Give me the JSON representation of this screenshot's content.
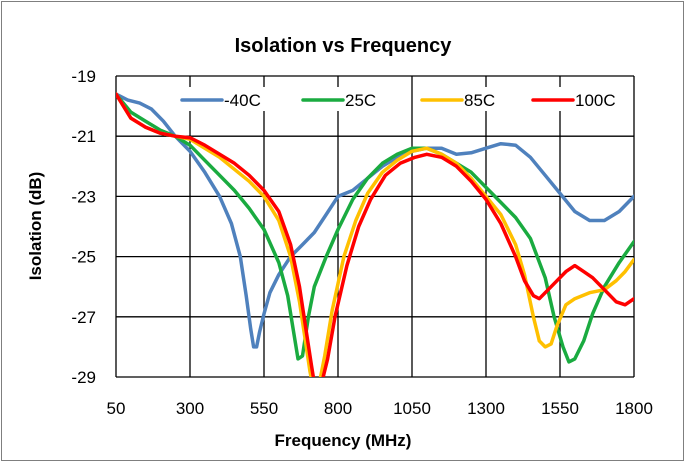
{
  "chart_data": {
    "type": "line",
    "title": "Isolation vs Frequency",
    "xlabel": "Frequency (MHz)",
    "ylabel": "Isolation (dB)",
    "xlim": [
      50,
      1800
    ],
    "ylim": [
      -29,
      -19
    ],
    "x_ticks": [
      50,
      300,
      550,
      800,
      1050,
      1300,
      1550,
      1800
    ],
    "x_tick_labels": [
      "50",
      "300",
      "550",
      "800",
      "1050",
      "1300",
      "1550",
      "1800"
    ],
    "y_ticks": [
      -19,
      -21,
      -23,
      -25,
      -27,
      -29
    ],
    "y_tick_labels": [
      "-19",
      "-21",
      "-23",
      "-25",
      "-27",
      "-29"
    ],
    "grid": true,
    "legend_position": "top",
    "series": [
      {
        "name": "-40C",
        "color": "#4f81bd",
        "points": [
          [
            50,
            -19.6
          ],
          [
            90,
            -19.8
          ],
          [
            130,
            -19.9
          ],
          [
            170,
            -20.1
          ],
          [
            210,
            -20.5
          ],
          [
            250,
            -21.0
          ],
          [
            300,
            -21.5
          ],
          [
            350,
            -22.2
          ],
          [
            400,
            -23.0
          ],
          [
            440,
            -23.9
          ],
          [
            470,
            -25.0
          ],
          [
            490,
            -26.3
          ],
          [
            505,
            -27.4
          ],
          [
            515,
            -28.0
          ],
          [
            525,
            -28.0
          ],
          [
            535,
            -27.5
          ],
          [
            550,
            -26.9
          ],
          [
            570,
            -26.2
          ],
          [
            600,
            -25.6
          ],
          [
            640,
            -25.0
          ],
          [
            680,
            -24.6
          ],
          [
            720,
            -24.2
          ],
          [
            760,
            -23.6
          ],
          [
            800,
            -23.0
          ],
          [
            850,
            -22.8
          ],
          [
            900,
            -22.4
          ],
          [
            950,
            -22.0
          ],
          [
            1000,
            -21.7
          ],
          [
            1050,
            -21.5
          ],
          [
            1100,
            -21.4
          ],
          [
            1150,
            -21.4
          ],
          [
            1200,
            -21.6
          ],
          [
            1250,
            -21.55
          ],
          [
            1300,
            -21.4
          ],
          [
            1350,
            -21.25
          ],
          [
            1400,
            -21.3
          ],
          [
            1450,
            -21.7
          ],
          [
            1500,
            -22.3
          ],
          [
            1550,
            -22.9
          ],
          [
            1600,
            -23.5
          ],
          [
            1650,
            -23.8
          ],
          [
            1700,
            -23.8
          ],
          [
            1750,
            -23.5
          ],
          [
            1800,
            -23.0
          ]
        ]
      },
      {
        "name": "25C",
        "color": "#1aab40",
        "points": [
          [
            50,
            -19.6
          ],
          [
            100,
            -20.2
          ],
          [
            150,
            -20.5
          ],
          [
            200,
            -20.8
          ],
          [
            250,
            -21.0
          ],
          [
            300,
            -21.3
          ],
          [
            350,
            -21.8
          ],
          [
            400,
            -22.3
          ],
          [
            450,
            -22.8
          ],
          [
            500,
            -23.4
          ],
          [
            550,
            -24.1
          ],
          [
            600,
            -25.2
          ],
          [
            630,
            -26.3
          ],
          [
            650,
            -27.5
          ],
          [
            665,
            -28.4
          ],
          [
            680,
            -28.3
          ],
          [
            700,
            -27.0
          ],
          [
            720,
            -26.0
          ],
          [
            760,
            -25.0
          ],
          [
            800,
            -24.1
          ],
          [
            850,
            -23.1
          ],
          [
            900,
            -22.4
          ],
          [
            950,
            -21.9
          ],
          [
            1000,
            -21.6
          ],
          [
            1050,
            -21.4
          ],
          [
            1100,
            -21.4
          ],
          [
            1150,
            -21.6
          ],
          [
            1200,
            -21.9
          ],
          [
            1250,
            -22.2
          ],
          [
            1300,
            -22.7
          ],
          [
            1350,
            -23.2
          ],
          [
            1400,
            -23.7
          ],
          [
            1450,
            -24.4
          ],
          [
            1500,
            -25.7
          ],
          [
            1530,
            -27.0
          ],
          [
            1560,
            -28.0
          ],
          [
            1580,
            -28.5
          ],
          [
            1600,
            -28.4
          ],
          [
            1630,
            -27.8
          ],
          [
            1660,
            -26.9
          ],
          [
            1700,
            -26.0
          ],
          [
            1750,
            -25.2
          ],
          [
            1800,
            -24.5
          ]
        ]
      },
      {
        "name": "85C",
        "color": "#ffc000",
        "points": [
          [
            50,
            -19.6
          ],
          [
            100,
            -20.4
          ],
          [
            150,
            -20.7
          ],
          [
            200,
            -20.9
          ],
          [
            250,
            -21.0
          ],
          [
            300,
            -21.1
          ],
          [
            350,
            -21.4
          ],
          [
            400,
            -21.7
          ],
          [
            450,
            -22.1
          ],
          [
            500,
            -22.5
          ],
          [
            550,
            -23.0
          ],
          [
            600,
            -23.8
          ],
          [
            640,
            -25.0
          ],
          [
            670,
            -26.5
          ],
          [
            690,
            -27.8
          ],
          [
            705,
            -28.8
          ],
          [
            715,
            -29.3
          ],
          [
            735,
            -29.3
          ],
          [
            755,
            -28.3
          ],
          [
            780,
            -26.8
          ],
          [
            820,
            -25.0
          ],
          [
            860,
            -23.8
          ],
          [
            900,
            -22.9
          ],
          [
            950,
            -22.2
          ],
          [
            1000,
            -21.8
          ],
          [
            1050,
            -21.5
          ],
          [
            1100,
            -21.4
          ],
          [
            1150,
            -21.6
          ],
          [
            1200,
            -21.9
          ],
          [
            1250,
            -22.4
          ],
          [
            1300,
            -23.0
          ],
          [
            1350,
            -23.6
          ],
          [
            1400,
            -24.6
          ],
          [
            1430,
            -25.6
          ],
          [
            1460,
            -27.0
          ],
          [
            1480,
            -27.8
          ],
          [
            1500,
            -28.0
          ],
          [
            1520,
            -27.9
          ],
          [
            1540,
            -27.3
          ],
          [
            1570,
            -26.6
          ],
          [
            1600,
            -26.4
          ],
          [
            1650,
            -26.2
          ],
          [
            1700,
            -26.1
          ],
          [
            1740,
            -25.8
          ],
          [
            1770,
            -25.5
          ],
          [
            1800,
            -25.1
          ]
        ]
      },
      {
        "name": "100C",
        "color": "#ff0000",
        "points": [
          [
            50,
            -19.6
          ],
          [
            100,
            -20.4
          ],
          [
            150,
            -20.7
          ],
          [
            200,
            -20.9
          ],
          [
            250,
            -21.0
          ],
          [
            300,
            -21.05
          ],
          [
            350,
            -21.3
          ],
          [
            400,
            -21.6
          ],
          [
            450,
            -21.9
          ],
          [
            500,
            -22.3
          ],
          [
            550,
            -22.8
          ],
          [
            600,
            -23.5
          ],
          [
            640,
            -24.6
          ],
          [
            670,
            -26.0
          ],
          [
            690,
            -27.3
          ],
          [
            710,
            -28.6
          ],
          [
            720,
            -29.2
          ],
          [
            745,
            -29.2
          ],
          [
            765,
            -28.4
          ],
          [
            790,
            -27.0
          ],
          [
            830,
            -25.3
          ],
          [
            870,
            -24.0
          ],
          [
            910,
            -23.1
          ],
          [
            960,
            -22.3
          ],
          [
            1010,
            -21.9
          ],
          [
            1060,
            -21.7
          ],
          [
            1100,
            -21.6
          ],
          [
            1150,
            -21.7
          ],
          [
            1200,
            -22.0
          ],
          [
            1250,
            -22.5
          ],
          [
            1300,
            -23.1
          ],
          [
            1350,
            -23.9
          ],
          [
            1400,
            -25.0
          ],
          [
            1430,
            -25.8
          ],
          [
            1460,
            -26.3
          ],
          [
            1480,
            -26.4
          ],
          [
            1510,
            -26.1
          ],
          [
            1540,
            -25.8
          ],
          [
            1570,
            -25.5
          ],
          [
            1600,
            -25.3
          ],
          [
            1630,
            -25.5
          ],
          [
            1660,
            -25.7
          ],
          [
            1700,
            -26.1
          ],
          [
            1740,
            -26.5
          ],
          [
            1770,
            -26.6
          ],
          [
            1800,
            -26.4
          ]
        ]
      }
    ]
  }
}
